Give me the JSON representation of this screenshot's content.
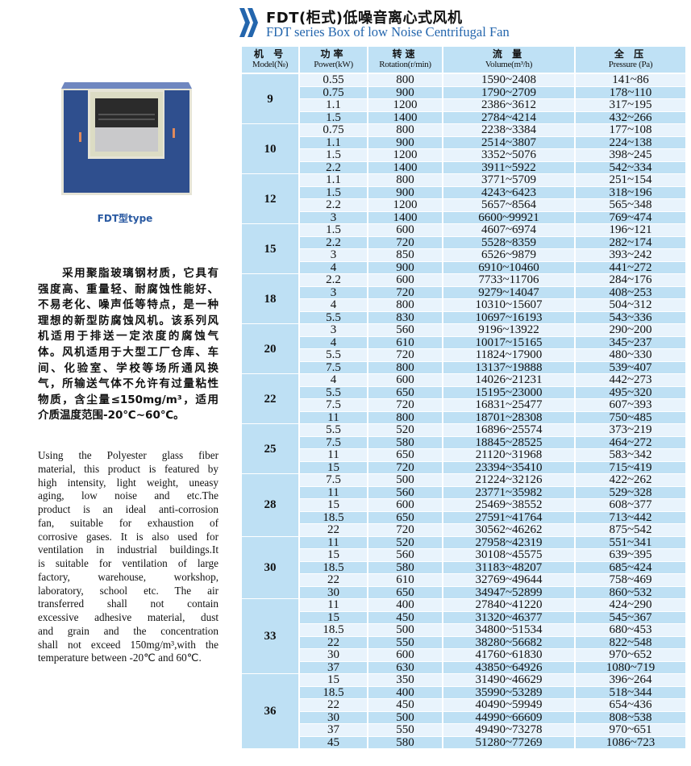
{
  "header": {
    "title_cn": "FDT(柜式)低噪音离心式风机",
    "title_en": "FDT series Box of  low Noise Centrifugal Fan",
    "icon": "double-chevron-right-icon",
    "accent_color": "#2466ad"
  },
  "product": {
    "caption": "FDT型type"
  },
  "description_cn": [
    "　　采用聚脂玻璃钢材质，它具有",
    "强度高、重量轻、耐腐蚀性能好、",
    "不易老化、噪声低等特点，是一种",
    "理想的新型防腐蚀风机。该系列风",
    "机适用于排送一定浓度的腐蚀气",
    "体。风机适用于大型工厂仓库、车",
    "间、化验室、学校等场所通风换",
    "气，所输送气体不允许有过量粘性",
    "物质，含尘量≤150mg/m³，适用",
    "介质温度范围-20℃~60℃。"
  ],
  "description_en": [
    "Using the Polyester glass fiber",
    "material, this product is featured by",
    "high intensity, light weight, uneasy",
    "aging, low noise and etc.The",
    "product is an ideal  anti-corrosion",
    "fan, suitable for exhaustion of",
    "corrosive gases. It is also used for",
    "ventilation in industrial buildings.It",
    "is suitable for ventilation of large",
    "factory, warehouse, workshop,",
    "laboratory, school etc. The air",
    "transferred shall not contain",
    "excessive adhesive material, dust",
    "and grain and the concentration",
    "shall not exceed 150mg/m³,with the",
    "temperature between -20℃ and 60℃."
  ],
  "table": {
    "columns": [
      {
        "cn": "机 号",
        "en": "Model(№)"
      },
      {
        "cn": "功率",
        "en": "Power(kW)"
      },
      {
        "cn": "转速",
        "en": "Rotation(r/min)"
      },
      {
        "cn": "流 量",
        "en": "Volume(m³/h)"
      },
      {
        "cn": "全 压",
        "en": "Pressure (Pa)"
      }
    ],
    "groups": [
      {
        "model": "9",
        "rows": [
          [
            "0.55",
            "800",
            "1590~2408",
            "141~86"
          ],
          [
            "0.75",
            "900",
            "1790~2709",
            "178~110"
          ],
          [
            "1.1",
            "1200",
            "2386~3612",
            "317~195"
          ],
          [
            "1.5",
            "1400",
            "2784~4214",
            "432~266"
          ]
        ]
      },
      {
        "model": "10",
        "rows": [
          [
            "0.75",
            "800",
            "2238~3384",
            "177~108"
          ],
          [
            "1.1",
            "900",
            "2514~3807",
            "224~138"
          ],
          [
            "1.5",
            "1200",
            "3352~5076",
            "398~245"
          ],
          [
            "2.2",
            "1400",
            "3911~5922",
            "542~334"
          ]
        ]
      },
      {
        "model": "12",
        "rows": [
          [
            "1.1",
            "800",
            "3771~5709",
            "251~154"
          ],
          [
            "1.5",
            "900",
            "4243~6423",
            "318~196"
          ],
          [
            "2.2",
            "1200",
            "5657~8564",
            "565~348"
          ],
          [
            "3",
            "1400",
            "6600~99921",
            "769~474"
          ]
        ]
      },
      {
        "model": "15",
        "rows": [
          [
            "1.5",
            "600",
            "4607~6974",
            "196~121"
          ],
          [
            "2.2",
            "720",
            "5528~8359",
            "282~174"
          ],
          [
            "3",
            "850",
            "6526~9879",
            "393~242"
          ],
          [
            "4",
            "900",
            "6910~10460",
            "441~272"
          ]
        ]
      },
      {
        "model": "18",
        "rows": [
          [
            "2.2",
            "600",
            "7733~11706",
            "284~176"
          ],
          [
            "3",
            "720",
            "9279~14047",
            "408~253"
          ],
          [
            "4",
            "800",
            "10310~15607",
            "504~312"
          ],
          [
            "5.5",
            "830",
            "10697~16193",
            "543~336"
          ]
        ]
      },
      {
        "model": "20",
        "rows": [
          [
            "3",
            "560",
            "9196~13922",
            "290~200"
          ],
          [
            "4",
            "610",
            "10017~15165",
            "345~237"
          ],
          [
            "5.5",
            "720",
            "11824~17900",
            "480~330"
          ],
          [
            "7.5",
            "800",
            "13137~19888",
            "539~407"
          ]
        ]
      },
      {
        "model": "22",
        "rows": [
          [
            "4",
            "600",
            "14026~21231",
            "442~273"
          ],
          [
            "5.5",
            "650",
            "15195~23000",
            "495~320"
          ],
          [
            "7.5",
            "720",
            "16831~25477",
            "607~393"
          ],
          [
            "11",
            "800",
            "18701~28308",
            "750~485"
          ]
        ]
      },
      {
        "model": "25",
        "rows": [
          [
            "5.5",
            "520",
            "16896~25574",
            "373~219"
          ],
          [
            "7.5",
            "580",
            "18845~28525",
            "464~272"
          ],
          [
            "11",
            "650",
            "21120~31968",
            "583~342"
          ],
          [
            "15",
            "720",
            "23394~35410",
            "715~419"
          ]
        ]
      },
      {
        "model": "28",
        "rows": [
          [
            "7.5",
            "500",
            "21224~32126",
            "422~262"
          ],
          [
            "11",
            "560",
            "23771~35982",
            "529~328"
          ],
          [
            "15",
            "600",
            "25469~38552",
            "608~377"
          ],
          [
            "18.5",
            "650",
            "27591~41764",
            "713~442"
          ],
          [
            "22",
            "720",
            "30562~46262",
            "875~542"
          ]
        ]
      },
      {
        "model": "30",
        "rows": [
          [
            "11",
            "520",
            "27958~42319",
            "551~341"
          ],
          [
            "15",
            "560",
            "30108~45575",
            "639~395"
          ],
          [
            "18.5",
            "580",
            "31183~48207",
            "685~424"
          ],
          [
            "22",
            "610",
            "32769~49644",
            "758~469"
          ],
          [
            "30",
            "650",
            "34947~52899",
            "860~532"
          ]
        ]
      },
      {
        "model": "33",
        "rows": [
          [
            "11",
            "400",
            "27840~41220",
            "424~290"
          ],
          [
            "15",
            "450",
            "31320~46377",
            "545~367"
          ],
          [
            "18.5",
            "500",
            "34800~51534",
            "680~453"
          ],
          [
            "22",
            "550",
            "38280~56682",
            "822~548"
          ],
          [
            "30",
            "600",
            "41760~61830",
            "970~652"
          ],
          [
            "37",
            "630",
            "43850~64926",
            "1080~719"
          ]
        ]
      },
      {
        "model": "36",
        "rows": [
          [
            "15",
            "350",
            "31490~46629",
            "396~264"
          ],
          [
            "18.5",
            "400",
            "35990~53289",
            "518~344"
          ],
          [
            "22",
            "450",
            "40490~59949",
            "654~436"
          ],
          [
            "30",
            "500",
            "44990~66609",
            "808~538"
          ],
          [
            "37",
            "550",
            "49490~73278",
            "970~651"
          ],
          [
            "45",
            "580",
            "51280~77269",
            "1086~723"
          ]
        ]
      }
    ]
  }
}
